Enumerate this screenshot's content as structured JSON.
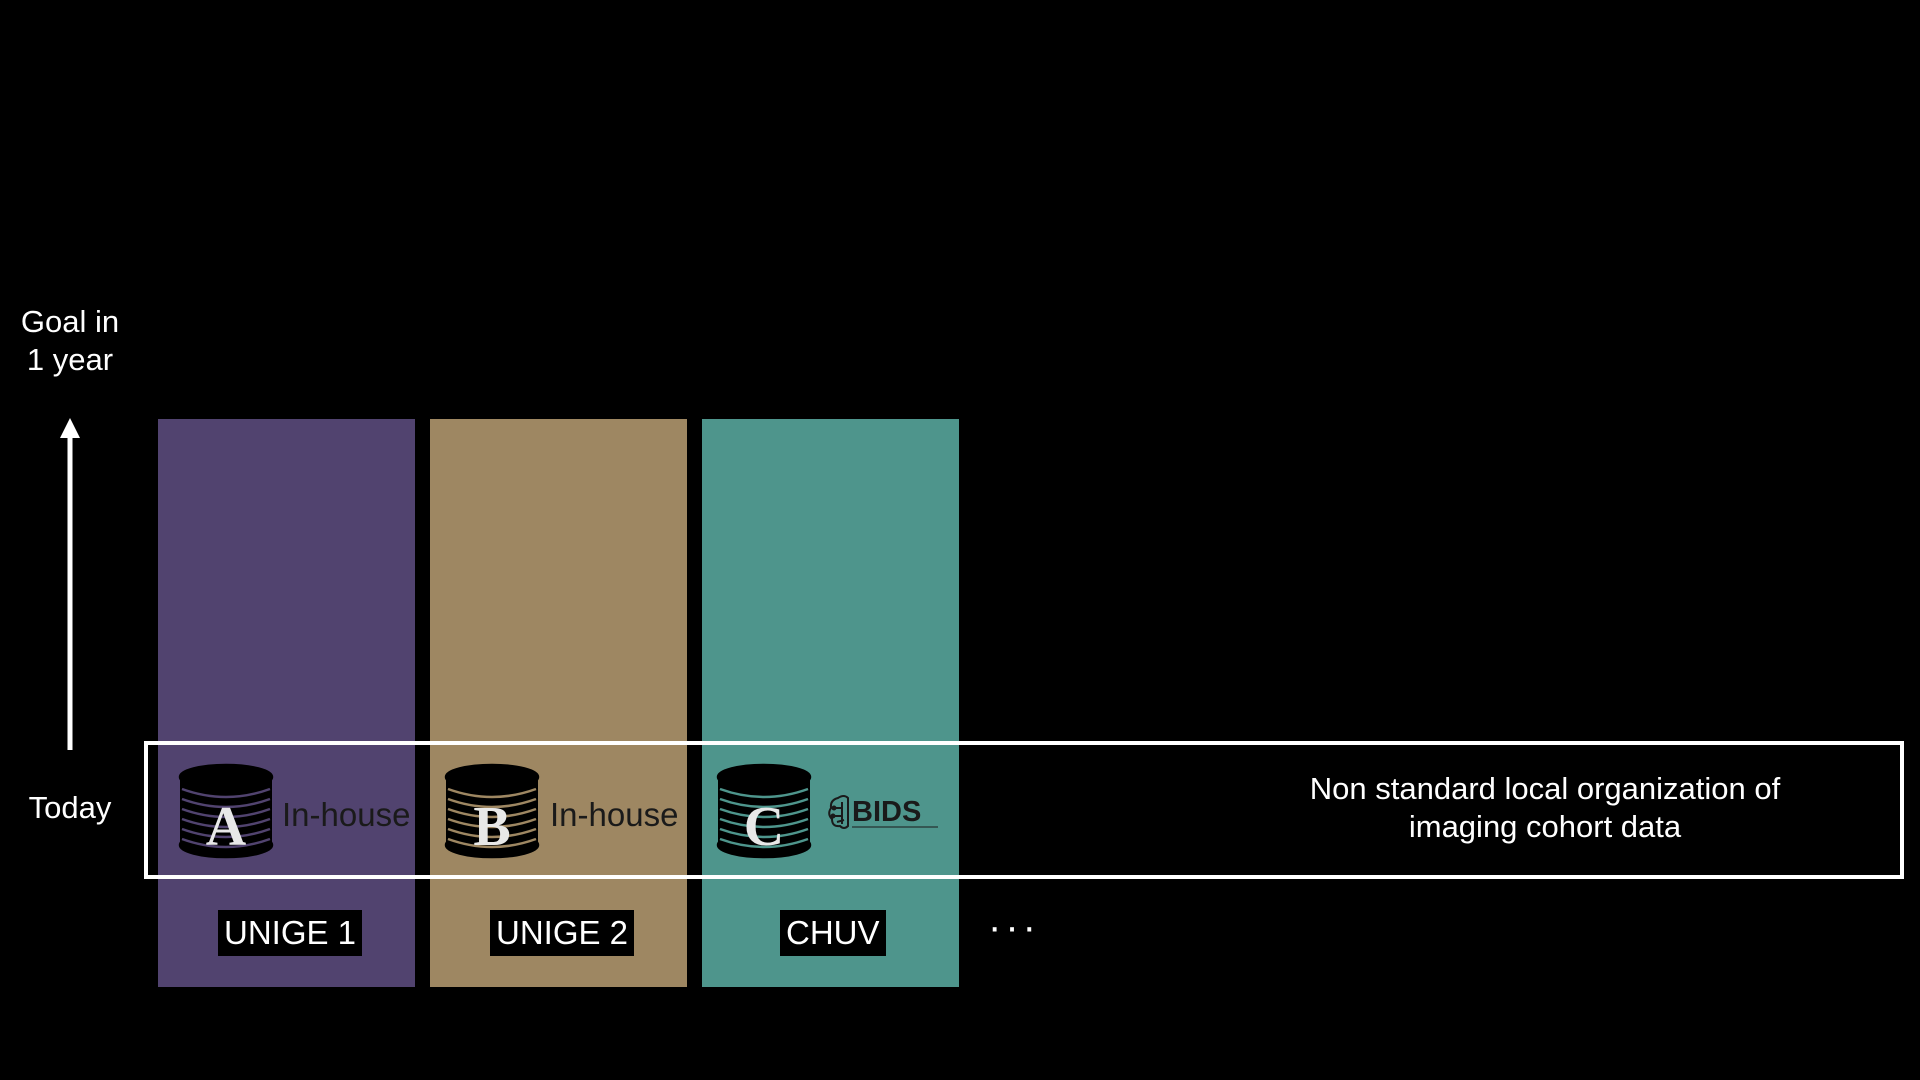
{
  "axis": {
    "top_label_line1": "Goal in",
    "top_label_line2": "1 year",
    "bottom_label": "Today"
  },
  "columns": [
    {
      "site": "UNIGE 1",
      "db_letter": "A",
      "format": "In-house",
      "color": "#51436f"
    },
    {
      "site": "UNIGE 2",
      "db_letter": "B",
      "format": "In-house",
      "color": "#9e8762"
    },
    {
      "site": "CHUV",
      "db_letter": "C",
      "format": "BIDS",
      "color": "#4e958c"
    }
  ],
  "ellipsis": "···",
  "today_box": {
    "text_line1": "Non standard local organization of",
    "text_line2": "imaging cohort data"
  },
  "icons": {
    "arrow": "up-arrow-icon",
    "database": "database-icon",
    "bids": "bids-brain-logo-icon"
  }
}
